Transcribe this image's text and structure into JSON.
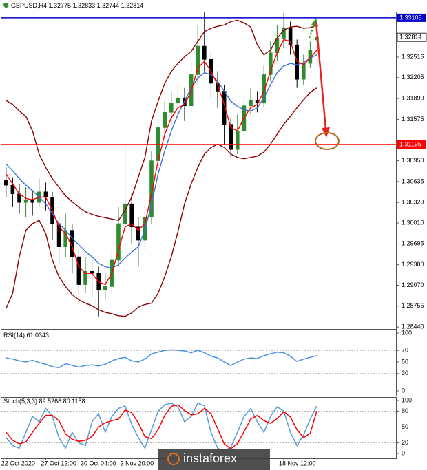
{
  "watermark": "instaforex",
  "chart_data": [
    {
      "type": "candlestick",
      "title": "GBPUSD,H4",
      "categories": [
        "22 Oct 2020",
        null,
        null,
        null,
        null,
        null,
        "27 Oct 12:00",
        null,
        null,
        null,
        null,
        null,
        "30 Oct 04:00",
        null,
        null,
        null,
        null,
        null,
        "3 Nov 20:00",
        null,
        null,
        null,
        null,
        null,
        null,
        null,
        null,
        null,
        null,
        null,
        null,
        null,
        null,
        null,
        null,
        null,
        null,
        null,
        null,
        null,
        null,
        null,
        "18 Nov 12:00",
        null,
        null,
        null,
        null,
        null
      ],
      "open": [
        1.3065,
        1.3058,
        1.3045,
        1.3032,
        1.3036,
        1.3032,
        1.3048,
        1.304,
        1.3,
        1.2965,
        1.299,
        1.295,
        1.2908,
        1.2928,
        1.2925,
        1.29,
        1.2905,
        1.2945,
        1.3,
        1.303,
        1.2995,
        1.2975,
        1.301,
        1.3095,
        1.3145,
        1.3168,
        1.3182,
        1.319,
        1.3178,
        1.3225,
        1.3268,
        1.3248,
        1.3212,
        1.32,
        1.315,
        1.3112,
        1.314,
        1.3178,
        1.3186,
        1.3182,
        1.3225,
        1.3258,
        1.328,
        1.3296,
        1.327,
        1.3218,
        1.3242,
        1.32775
      ],
      "high": [
        1.3085,
        1.307,
        1.306,
        1.3055,
        1.305,
        1.3068,
        1.3062,
        1.3048,
        1.3012,
        1.3015,
        1.3,
        1.296,
        1.295,
        1.2945,
        1.2935,
        1.2925,
        1.296,
        1.3025,
        1.312,
        1.3045,
        1.301,
        1.303,
        1.311,
        1.3165,
        1.3185,
        1.32,
        1.321,
        1.3205,
        1.3245,
        1.33,
        1.332,
        1.326,
        1.323,
        1.321,
        1.316,
        1.3165,
        1.3195,
        1.3205,
        1.32,
        1.324,
        1.3275,
        1.33,
        1.3318,
        1.3305,
        1.3278,
        1.3255,
        1.3275,
        1.32833
      ],
      "low": [
        1.304,
        1.3025,
        1.3015,
        1.301,
        1.3012,
        1.3025,
        1.302,
        1.2975,
        1.294,
        1.295,
        1.2925,
        1.288,
        1.2895,
        1.289,
        1.286,
        1.2885,
        1.2895,
        1.2935,
        1.2985,
        1.297,
        1.2935,
        1.296,
        1.3,
        1.308,
        1.313,
        1.315,
        1.316,
        1.3155,
        1.317,
        1.321,
        1.323,
        1.319,
        1.3175,
        1.312,
        1.31,
        1.3105,
        1.313,
        1.3165,
        1.3168,
        1.3175,
        1.3215,
        1.3245,
        1.3265,
        1.3255,
        1.3205,
        1.321,
        1.3235,
        1.32744
      ],
      "close": [
        1.3058,
        1.3045,
        1.3032,
        1.3036,
        1.3032,
        1.3048,
        1.304,
        1.3,
        1.2965,
        1.299,
        1.295,
        1.2908,
        1.2928,
        1.2925,
        1.29,
        1.2905,
        1.2945,
        1.3,
        1.303,
        1.2995,
        1.2975,
        1.301,
        1.3095,
        1.3145,
        1.3168,
        1.3182,
        1.319,
        1.3178,
        1.3225,
        1.3268,
        1.3248,
        1.3212,
        1.32,
        1.315,
        1.3112,
        1.314,
        1.3178,
        1.3186,
        1.3182,
        1.3225,
        1.3258,
        1.328,
        1.3296,
        1.327,
        1.3218,
        1.3242,
        1.3262,
        1.32814
      ],
      "up_color": "#2e8b2e",
      "down_color": "#000000",
      "lines": [
        {
          "color": "#8b0000",
          "values": [
            1.3186,
            1.318,
            1.317,
            1.3162,
            1.314,
            1.3105,
            1.3085,
            1.3068,
            1.3055,
            1.3042,
            1.3033,
            1.3025,
            1.3018,
            1.3014,
            1.3011,
            1.3009,
            1.3007,
            1.3005,
            1.302,
            1.304,
            1.307,
            1.31,
            1.3155,
            1.3185,
            1.3212,
            1.323,
            1.3242,
            1.3252,
            1.326,
            1.3275,
            1.329,
            1.3295,
            1.3298,
            1.33,
            1.3305,
            1.3307,
            1.3303,
            1.3297,
            1.327,
            1.3255,
            1.3262,
            1.328,
            1.3292,
            1.3297,
            1.3298,
            1.3295,
            1.3296,
            1.33
          ]
        },
        {
          "color": "#8b0000",
          "values": [
            1.2872,
            1.2895,
            1.295,
            1.299,
            1.3,
            1.3005,
            1.2985,
            1.2945,
            1.292,
            1.2905,
            1.2893,
            1.2885,
            1.288,
            1.2876,
            1.287,
            1.2866,
            1.2864,
            1.2861,
            1.286,
            1.2865,
            1.2874,
            1.2878,
            1.288,
            1.2895,
            1.292,
            1.295,
            1.2988,
            1.303,
            1.306,
            1.3085,
            1.3105,
            1.3115,
            1.312,
            1.3115,
            1.3105,
            1.31,
            1.3098,
            1.31,
            1.3102,
            1.3108,
            1.312,
            1.3135,
            1.315,
            1.3162,
            1.3175,
            1.3187,
            1.3198,
            1.3205
          ]
        },
        {
          "color": "#3a6fe0",
          "values": [
            1.309,
            1.308,
            1.3068,
            1.3058,
            1.305,
            1.304,
            1.303,
            1.3015,
            1.3,
            1.299,
            1.2978,
            1.2968,
            1.2958,
            1.295,
            1.294,
            1.2935,
            1.2933,
            1.2938,
            1.2948,
            1.2957,
            1.2965,
            1.299,
            1.303,
            1.3075,
            1.311,
            1.314,
            1.3165,
            1.3185,
            1.3205,
            1.322,
            1.3228,
            1.3225,
            1.3215,
            1.32,
            1.3185,
            1.3177,
            1.3172,
            1.317,
            1.3175,
            1.319,
            1.321,
            1.3228,
            1.3238,
            1.3242,
            1.324,
            1.3243,
            1.325,
            1.3255
          ]
        },
        {
          "color": "#ff0000",
          "values": [
            1.3075,
            1.306,
            1.3045,
            1.3038,
            1.3036,
            1.304,
            1.304,
            1.302,
            1.2995,
            1.2985,
            1.2965,
            1.2935,
            1.2925,
            1.2925,
            1.2912,
            1.2908,
            1.2925,
            1.296,
            1.2995,
            1.3,
            1.299,
            1.3,
            1.3045,
            1.3095,
            1.3135,
            1.316,
            1.3175,
            1.318,
            1.32,
            1.3235,
            1.3245,
            1.323,
            1.321,
            1.318,
            1.3145,
            1.314,
            1.316,
            1.3175,
            1.318,
            1.32,
            1.323,
            1.3258,
            1.3278,
            1.3275,
            1.3245,
            1.324,
            1.325,
            1.3262
          ]
        }
      ],
      "hlines": [
        {
          "value": 1.33108,
          "color": "#0000cc"
        },
        {
          "value": 1.31195,
          "color": "#ff0000"
        }
      ],
      "ylim": [
        1.2841,
        1.3319
      ],
      "yticks": [
        1.32515,
        1.32205,
        {
          "value": 1.3189,
          "label": "1.31890"
        },
        1.31575,
        {
          "value": 1.3095,
          "label": "1.30950"
        },
        1.30635,
        {
          "value": 1.3032,
          "label": "1.30320"
        },
        {
          "value": 1.3001,
          "label": "1.30010"
        },
        1.29695,
        {
          "value": 1.2938,
          "label": "1.29380"
        },
        {
          "value": 1.2907,
          "label": "1.29070"
        },
        1.28755,
        {
          "value": 1.2844,
          "label": "1.28440"
        }
      ]
    },
    {
      "type": "line",
      "title": "RSI(14)",
      "series": [
        {
          "color": "#4a8fe6",
          "values": [
            57,
            55,
            52,
            50,
            53,
            49,
            46,
            42,
            40,
            47,
            44,
            41,
            44,
            45,
            43,
            46,
            52,
            56,
            58,
            52,
            50,
            55,
            64,
            67,
            70,
            71,
            70,
            69,
            66,
            70,
            66,
            60,
            57,
            50,
            44,
            50,
            55,
            57,
            56,
            61,
            64,
            67,
            66,
            60,
            51,
            55,
            58,
            61.0343
          ]
        }
      ],
      "ylim": [
        0,
        100
      ],
      "yticks": [
        100,
        70,
        50,
        30,
        0
      ],
      "levels": [
        70,
        30
      ]
    },
    {
      "type": "line",
      "title": "Stoch(5,3,3)",
      "series": [
        {
          "color": "#5b9bd5",
          "values": [
            30,
            15,
            10,
            40,
            70,
            60,
            85,
            70,
            30,
            10,
            40,
            20,
            15,
            60,
            75,
            40,
            70,
            85,
            90,
            55,
            30,
            10,
            45,
            80,
            92,
            95,
            88,
            60,
            70,
            95,
            90,
            40,
            10,
            5,
            12,
            40,
            70,
            85,
            60,
            40,
            70,
            88,
            80,
            40,
            15,
            35,
            65,
            89.5268
          ]
        },
        {
          "color": "#ff0000",
          "values": [
            40,
            25,
            18,
            22,
            40,
            57,
            72,
            72,
            62,
            37,
            27,
            23,
            25,
            32,
            50,
            58,
            62,
            65,
            82,
            77,
            58,
            32,
            28,
            45,
            72,
            89,
            92,
            81,
            73,
            75,
            85,
            75,
            47,
            18,
            9,
            19,
            41,
            65,
            72,
            62,
            57,
            66,
            79,
            69,
            45,
            30,
            38,
            80.1158
          ]
        }
      ],
      "ylim": [
        0,
        100
      ],
      "yticks": [
        100,
        80,
        50,
        20,
        0
      ],
      "levels": [
        80,
        20
      ]
    }
  ]
}
